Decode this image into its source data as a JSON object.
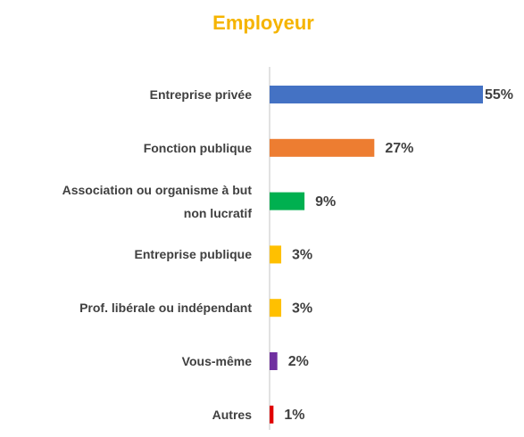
{
  "chart_data": {
    "type": "bar",
    "orientation": "horizontal",
    "title": "Employeur",
    "categories": [
      "Entreprise privée",
      "Fonction publique",
      "Association ou organisme à but non lucratif",
      "Entreprise publique",
      "Prof. libérale ou indépendant",
      "Vous-même",
      "Autres"
    ],
    "values": [
      55,
      27,
      9,
      3,
      3,
      2,
      1
    ],
    "value_labels": [
      "55%",
      "27%",
      "9%",
      "3%",
      "3%",
      "2%",
      "1%"
    ],
    "colors": [
      "#4472c4",
      "#ed7d31",
      "#00b050",
      "#ffc000",
      "#ffc000",
      "#7030a0",
      "#e00000"
    ],
    "xlim": [
      0,
      55
    ]
  }
}
